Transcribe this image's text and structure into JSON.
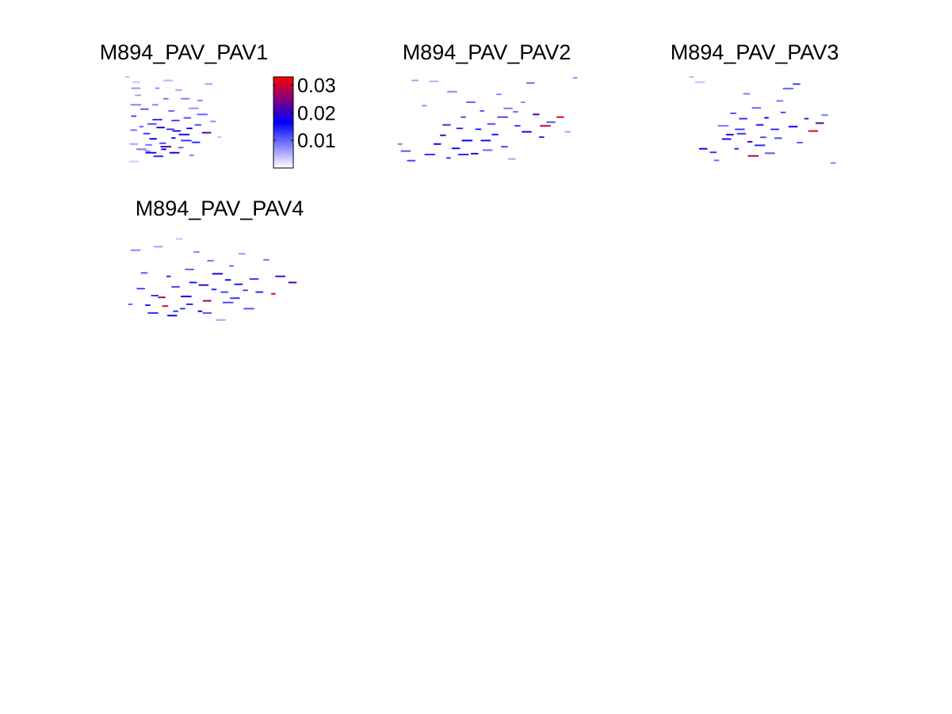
{
  "figure": {
    "panels": [
      {
        "title": "M894_PAV_PAV1"
      },
      {
        "title": "M894_PAV_PAV2"
      },
      {
        "title": "M894_PAV_PAV3"
      },
      {
        "title": "M894_PAV_PAV4"
      }
    ]
  },
  "chart_data": {
    "type": "heatmap",
    "colorbar": {
      "min": 0,
      "max": 0.033,
      "ticks": [
        0.01,
        0.02,
        0.03
      ],
      "tick_labels": [
        "0.01",
        "0.02",
        "0.03"
      ],
      "colormap": [
        "#ffffff",
        "#0000ff",
        "#ff0000"
      ]
    },
    "panels": [
      {
        "title": "M894_PAV_PAV1",
        "cells": [
          [
            0.02,
            0.01,
            0.004
          ],
          [
            0.08,
            0.98,
            0.003
          ],
          [
            0.08,
            0.78,
            0.006
          ],
          [
            0.08,
            0.62,
            0.009
          ],
          [
            0.08,
            0.46,
            0.012
          ],
          [
            0.1,
            0.33,
            0.008
          ],
          [
            0.1,
            0.14,
            0.007
          ],
          [
            0.1,
            0.07,
            0.004
          ],
          [
            0.12,
            0.22,
            0.006
          ],
          [
            0.15,
            0.58,
            0.01
          ],
          [
            0.15,
            0.84,
            0.009
          ],
          [
            0.18,
            0.38,
            0.011
          ],
          [
            0.2,
            0.66,
            0.013
          ],
          [
            0.21,
            0.86,
            0.008
          ],
          [
            0.24,
            0.88,
            0.016
          ],
          [
            0.25,
            0.55,
            0.012
          ],
          [
            0.26,
            0.72,
            0.017
          ],
          [
            0.28,
            0.33,
            0.008
          ],
          [
            0.3,
            0.14,
            0.007
          ],
          [
            0.31,
            0.92,
            0.014
          ],
          [
            0.33,
            0.59,
            0.018
          ],
          [
            0.35,
            0.77,
            0.012
          ],
          [
            0.38,
            0.26,
            0.009
          ],
          [
            0.38,
            0.81,
            0.021
          ],
          [
            0.4,
            0.05,
            0.005
          ],
          [
            0.42,
            0.61,
            0.013
          ],
          [
            0.43,
            0.4,
            0.01
          ],
          [
            0.45,
            0.71,
            0.015
          ],
          [
            0.46,
            0.88,
            0.018
          ],
          [
            0.47,
            0.51,
            0.012
          ],
          [
            0.5,
            0.16,
            0.006
          ],
          [
            0.52,
            0.82,
            0.01
          ],
          [
            0.55,
            0.67,
            0.016
          ],
          [
            0.56,
            0.26,
            0.008
          ],
          [
            0.58,
            0.48,
            0.011
          ],
          [
            0.6,
            0.6,
            0.019
          ],
          [
            0.62,
            0.91,
            0.009
          ],
          [
            0.64,
            0.37,
            0.007
          ],
          [
            0.66,
            0.76,
            0.014
          ],
          [
            0.68,
            0.56,
            0.012
          ],
          [
            0.7,
            0.28,
            0.008
          ],
          [
            0.72,
            0.44,
            0.01
          ],
          [
            0.76,
            0.65,
            0.021
          ],
          [
            0.78,
            0.09,
            0.006
          ],
          [
            0.82,
            0.52,
            0.007
          ],
          [
            0.88,
            0.7,
            0.004
          ],
          [
            0.3,
            0.5,
            0.013
          ],
          [
            0.48,
            0.63,
            0.015
          ],
          [
            0.22,
            0.79,
            0.009
          ],
          [
            0.36,
            0.84,
            0.016
          ],
          [
            0.57,
            0.74,
            0.013
          ]
        ]
      },
      {
        "title": "M894_PAV_PAV2",
        "cells": [
          [
            0.02,
            0.78,
            0.009
          ],
          [
            0.05,
            0.86,
            0.011
          ],
          [
            0.08,
            0.97,
            0.012
          ],
          [
            0.1,
            0.05,
            0.006
          ],
          [
            0.15,
            0.34,
            0.007
          ],
          [
            0.18,
            0.9,
            0.013
          ],
          [
            0.2,
            0.06,
            0.005
          ],
          [
            0.22,
            0.78,
            0.018
          ],
          [
            0.25,
            0.68,
            0.021
          ],
          [
            0.28,
            0.94,
            0.014
          ],
          [
            0.3,
            0.18,
            0.008
          ],
          [
            0.32,
            0.83,
            0.016
          ],
          [
            0.34,
            0.6,
            0.013
          ],
          [
            0.36,
            0.47,
            0.012
          ],
          [
            0.38,
            0.74,
            0.017
          ],
          [
            0.4,
            0.3,
            0.01
          ],
          [
            0.42,
            0.89,
            0.02
          ],
          [
            0.44,
            0.61,
            0.014
          ],
          [
            0.46,
            0.4,
            0.011
          ],
          [
            0.49,
            0.85,
            0.01
          ],
          [
            0.51,
            0.55,
            0.012
          ],
          [
            0.53,
            0.67,
            0.015
          ],
          [
            0.55,
            0.21,
            0.008
          ],
          [
            0.57,
            0.47,
            0.012
          ],
          [
            0.6,
            0.37,
            0.009
          ],
          [
            0.62,
            0.95,
            0.006
          ],
          [
            0.65,
            0.57,
            0.013
          ],
          [
            0.68,
            0.3,
            0.008
          ],
          [
            0.7,
            0.64,
            0.017
          ],
          [
            0.72,
            0.08,
            0.01
          ],
          [
            0.75,
            0.44,
            0.022
          ],
          [
            0.78,
            0.7,
            0.014
          ],
          [
            0.8,
            0.57,
            0.029
          ],
          [
            0.83,
            0.53,
            0.011
          ],
          [
            0.88,
            0.47,
            0.033
          ],
          [
            0.92,
            0.64,
            0.006
          ],
          [
            0.96,
            0.02,
            0.008
          ],
          [
            0.48,
            0.74,
            0.016
          ],
          [
            0.27,
            0.56,
            0.013
          ],
          [
            0.58,
            0.81,
            0.012
          ],
          [
            0.64,
            0.41,
            0.01
          ],
          [
            0.36,
            0.9,
            0.014
          ]
        ]
      },
      {
        "title": "M894_PAV_PAV3",
        "cells": [
          [
            0.05,
            0.01,
            0.005
          ],
          [
            0.1,
            0.07,
            0.004
          ],
          [
            0.12,
            0.82,
            0.017
          ],
          [
            0.18,
            0.86,
            0.013
          ],
          [
            0.2,
            0.95,
            0.01
          ],
          [
            0.24,
            0.56,
            0.009
          ],
          [
            0.26,
            0.71,
            0.016
          ],
          [
            0.28,
            0.66,
            0.019
          ],
          [
            0.3,
            0.42,
            0.011
          ],
          [
            0.32,
            0.82,
            0.014
          ],
          [
            0.34,
            0.6,
            0.012
          ],
          [
            0.36,
            0.48,
            0.013
          ],
          [
            0.38,
            0.2,
            0.008
          ],
          [
            0.4,
            0.74,
            0.021
          ],
          [
            0.42,
            0.9,
            0.029
          ],
          [
            0.44,
            0.36,
            0.01
          ],
          [
            0.46,
            0.55,
            0.015
          ],
          [
            0.48,
            0.69,
            0.012
          ],
          [
            0.5,
            0.47,
            0.018
          ],
          [
            0.52,
            0.87,
            0.011
          ],
          [
            0.55,
            0.6,
            0.013
          ],
          [
            0.58,
            0.28,
            0.009
          ],
          [
            0.6,
            0.41,
            0.012
          ],
          [
            0.63,
            0.14,
            0.01
          ],
          [
            0.66,
            0.57,
            0.016
          ],
          [
            0.68,
            0.09,
            0.012
          ],
          [
            0.7,
            0.75,
            0.011
          ],
          [
            0.74,
            0.48,
            0.014
          ],
          [
            0.78,
            0.62,
            0.031
          ],
          [
            0.82,
            0.53,
            0.022
          ],
          [
            0.85,
            0.44,
            0.009
          ],
          [
            0.9,
            0.98,
            0.008
          ],
          [
            0.46,
            0.78,
            0.014
          ],
          [
            0.35,
            0.65,
            0.013
          ],
          [
            0.57,
            0.7,
            0.012
          ]
        ]
      },
      {
        "title": "M894_PAV_PAV4",
        "cells": [
          [
            0.02,
            0.8,
            0.01
          ],
          [
            0.05,
            0.18,
            0.008
          ],
          [
            0.08,
            0.62,
            0.012
          ],
          [
            0.1,
            0.44,
            0.011
          ],
          [
            0.12,
            0.81,
            0.015
          ],
          [
            0.15,
            0.9,
            0.013
          ],
          [
            0.18,
            0.14,
            0.006
          ],
          [
            0.2,
            0.72,
            0.028
          ],
          [
            0.22,
            0.82,
            0.03
          ],
          [
            0.24,
            0.48,
            0.014
          ],
          [
            0.26,
            0.93,
            0.016
          ],
          [
            0.28,
            0.6,
            0.012
          ],
          [
            0.3,
            0.05,
            0.004
          ],
          [
            0.32,
            0.85,
            0.013
          ],
          [
            0.34,
            0.71,
            0.019
          ],
          [
            0.36,
            0.4,
            0.01
          ],
          [
            0.38,
            0.55,
            0.015
          ],
          [
            0.4,
            0.2,
            0.008
          ],
          [
            0.42,
            0.88,
            0.017
          ],
          [
            0.44,
            0.58,
            0.021
          ],
          [
            0.46,
            0.76,
            0.026
          ],
          [
            0.48,
            0.3,
            0.009
          ],
          [
            0.5,
            0.63,
            0.014
          ],
          [
            0.52,
            0.45,
            0.018
          ],
          [
            0.54,
            0.98,
            0.006
          ],
          [
            0.56,
            0.66,
            0.012
          ],
          [
            0.58,
            0.52,
            0.016
          ],
          [
            0.6,
            0.36,
            0.01
          ],
          [
            0.62,
            0.73,
            0.013
          ],
          [
            0.64,
            0.57,
            0.015
          ],
          [
            0.66,
            0.22,
            0.007
          ],
          [
            0.68,
            0.64,
            0.012
          ],
          [
            0.7,
            0.85,
            0.011
          ],
          [
            0.73,
            0.51,
            0.013
          ],
          [
            0.76,
            0.66,
            0.014
          ],
          [
            0.8,
            0.29,
            0.009
          ],
          [
            0.84,
            0.68,
            0.03
          ],
          [
            0.88,
            0.48,
            0.015
          ],
          [
            0.95,
            0.55,
            0.022
          ],
          [
            0.36,
            0.8,
            0.014
          ],
          [
            0.28,
            0.88,
            0.013
          ],
          [
            0.58,
            0.78,
            0.012
          ],
          [
            0.46,
            0.9,
            0.011
          ],
          [
            0.16,
            0.7,
            0.013
          ]
        ]
      }
    ]
  }
}
